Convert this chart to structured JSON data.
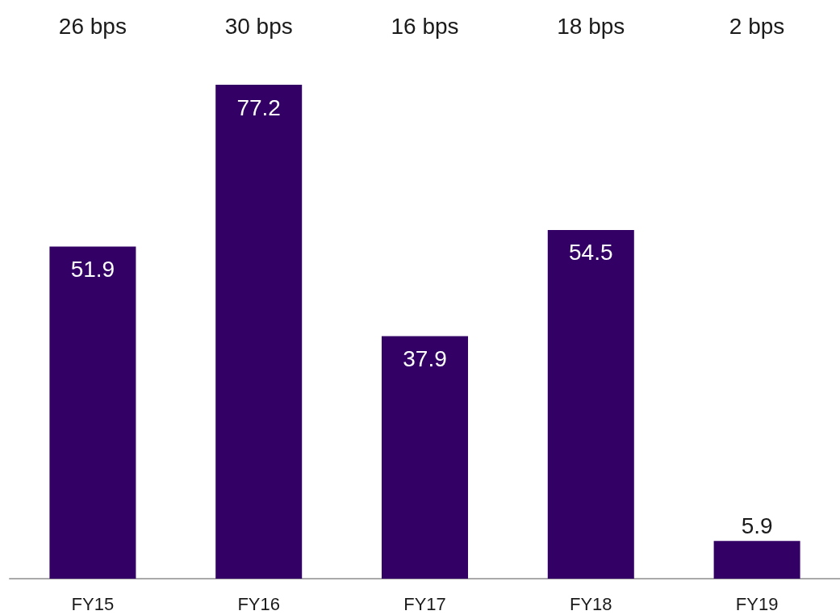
{
  "chart_data": {
    "type": "bar",
    "categories": [
      "FY15",
      "FY16",
      "FY17",
      "FY18",
      "FY19"
    ],
    "values": [
      51.9,
      77.2,
      37.9,
      54.5,
      5.9
    ],
    "color": "#330066",
    "data_labels": true,
    "annotations": [
      "26 bps",
      "30 bps",
      "16 bps",
      "18 bps",
      "2 bps"
    ]
  }
}
